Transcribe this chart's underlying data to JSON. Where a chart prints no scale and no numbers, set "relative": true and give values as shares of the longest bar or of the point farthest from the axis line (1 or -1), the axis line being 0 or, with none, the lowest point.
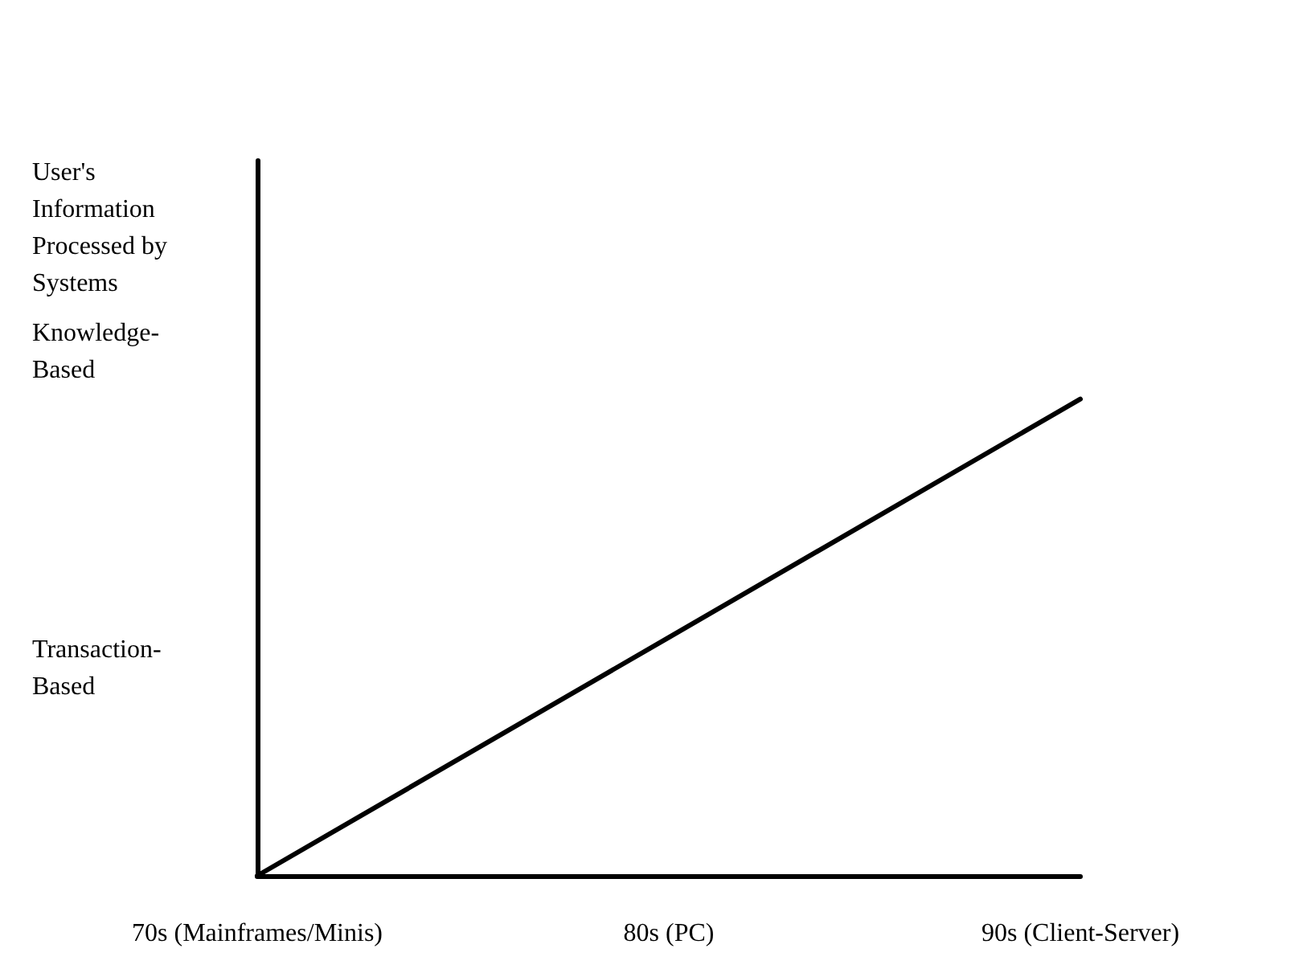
{
  "chart_data": {
    "type": "line",
    "relative": true,
    "ylabel": "User's Information Processed by Systems",
    "categories": [
      "70s (Mainframes/Minis)",
      "80s (PC)",
      "90s (Client-Server)"
    ],
    "series": [
      {
        "color": "#000000",
        "values": [
          0,
          0.5,
          1
        ]
      }
    ],
    "annotations": [
      "Knowledge-Based",
      "Transaction-Based"
    ],
    "grid": false,
    "marker": "none",
    "line_style": "solid"
  }
}
